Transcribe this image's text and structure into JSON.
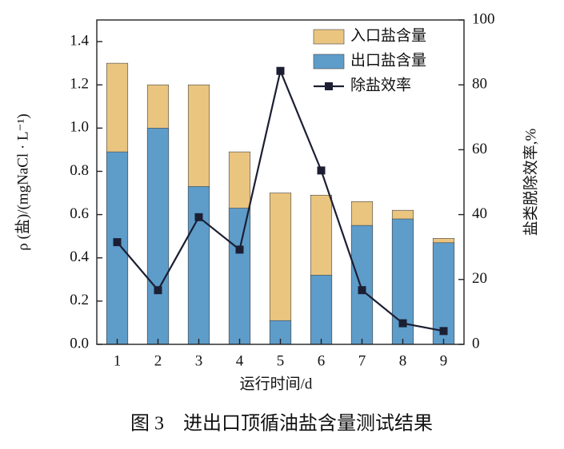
{
  "chart_data": {
    "type": "bar-line",
    "caption": "图 3　进出口顶循油盐含量测试结果",
    "xlabel": "运行时间/d",
    "ylabel": "ρ (盐)/(mgNaCl · L⁻¹)",
    "y2label": "盐类脱除效率,%",
    "categories": [
      "1",
      "2",
      "3",
      "4",
      "5",
      "6",
      "7",
      "8",
      "9"
    ],
    "series": [
      {
        "name": "入口盐含量",
        "type": "bar",
        "color": "#eac580",
        "values": [
          1.3,
          1.2,
          1.2,
          0.89,
          0.7,
          0.69,
          0.66,
          0.62,
          0.49
        ]
      },
      {
        "name": "出口盐含量",
        "type": "bar",
        "color": "#5e9dca",
        "values": [
          0.89,
          1.0,
          0.73,
          0.63,
          0.11,
          0.32,
          0.55,
          0.58,
          0.47
        ]
      },
      {
        "name": "除盐效率",
        "type": "line",
        "axis": "y2",
        "color": "#1c1f33",
        "values": [
          31.5,
          16.7,
          39.2,
          29.2,
          84.3,
          53.6,
          16.7,
          6.5,
          4.1
        ]
      }
    ],
    "ylim": [
      0,
      1.5
    ],
    "yticks": [
      {
        "value": 0,
        "label": "0.0"
      },
      0.2,
      0.4,
      0.6,
      0.8,
      {
        "value": 1,
        "label": "1.0"
      },
      1.2,
      1.4
    ],
    "y2lim": [
      0,
      100
    ],
    "y2ticks": [
      0,
      20,
      40,
      60,
      80,
      100
    ],
    "legend": "upper right"
  }
}
